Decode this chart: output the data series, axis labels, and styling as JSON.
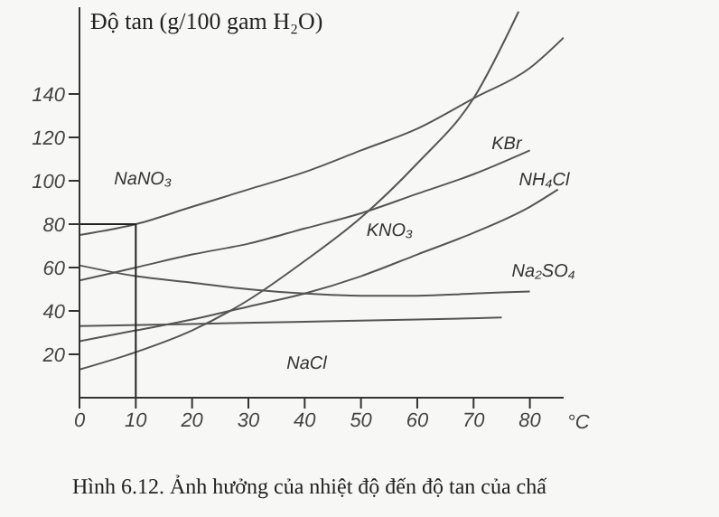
{
  "chart_data": {
    "type": "line",
    "ylabel": "Độ tan (g/100 gam H₂O)",
    "xlabel": "°C",
    "xlim": [
      0,
      86
    ],
    "xticks": [
      0,
      10,
      20,
      30,
      40,
      50,
      60,
      70,
      80
    ],
    "ylim": [
      0,
      180
    ],
    "yticks": [
      20,
      40,
      60,
      80,
      100,
      120,
      140
    ],
    "marker": "none",
    "line_style": "solid",
    "annotations": [
      "Hình 6.12. Ảnh hưởng của nhiệt độ đến độ tan của chấ"
    ],
    "series": [
      {
        "name": "NaNO₃",
        "color": "#555555",
        "x": [
          0,
          10,
          20,
          30,
          40,
          50,
          60,
          70,
          80,
          86
        ],
        "values": [
          75,
          80,
          88,
          96,
          104,
          114,
          124,
          138,
          152,
          166
        ]
      },
      {
        "name": "KBr",
        "color": "#555555",
        "x": [
          0,
          10,
          20,
          30,
          40,
          50,
          60,
          70,
          80
        ],
        "values": [
          54,
          60,
          66,
          71,
          78,
          85,
          94,
          103,
          114
        ]
      },
      {
        "name": "NH₄Cl",
        "color": "#555555",
        "x": [
          0,
          10,
          20,
          30,
          40,
          50,
          60,
          70,
          80,
          85
        ],
        "values": [
          26,
          31,
          36,
          42,
          48,
          56,
          66,
          76,
          88,
          96
        ]
      },
      {
        "name": "KNO₃",
        "color": "#555555",
        "x": [
          0,
          10,
          20,
          30,
          40,
          50,
          60,
          70,
          78
        ],
        "values": [
          13,
          21,
          31,
          45,
          63,
          83,
          108,
          138,
          178
        ]
      },
      {
        "name": "Na₂SO₄",
        "color": "#555555",
        "x": [
          0,
          10,
          20,
          30,
          40,
          50,
          60,
          70,
          80
        ],
        "values": [
          61,
          56,
          53,
          50,
          48,
          47,
          47,
          48,
          49
        ]
      },
      {
        "name": "NaCl",
        "color": "#555555",
        "x": [
          0,
          20,
          40,
          60,
          75
        ],
        "values": [
          33,
          34,
          35,
          36,
          37
        ]
      },
      {
        "color": "#222222",
        "x": [
          0,
          10,
          10
        ],
        "values": [
          80,
          80,
          0
        ]
      }
    ]
  }
}
